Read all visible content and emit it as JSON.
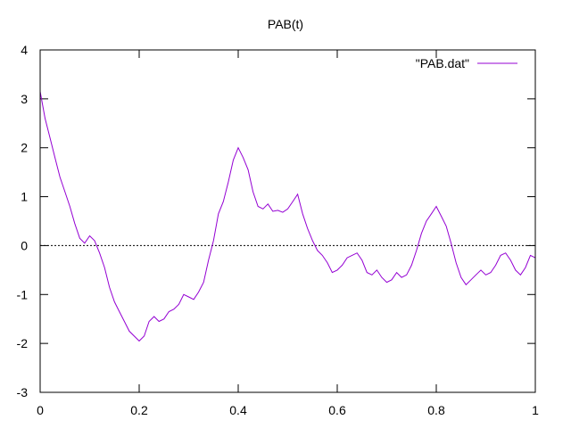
{
  "chart_data": {
    "type": "line",
    "title": "PAB(t)",
    "xlabel": "",
    "ylabel": "",
    "xlim": [
      0,
      1
    ],
    "ylim": [
      -3,
      4
    ],
    "x_ticks": [
      {
        "value": 0,
        "label": "0"
      },
      {
        "value": 0.2,
        "label": "0.2"
      },
      {
        "value": 0.4,
        "label": "0.4"
      },
      {
        "value": 0.6,
        "label": "0.6"
      },
      {
        "value": 0.8,
        "label": "0.8"
      },
      {
        "value": 1,
        "label": "1"
      }
    ],
    "y_ticks": [
      {
        "value": -3,
        "label": "-3"
      },
      {
        "value": -2,
        "label": "-2"
      },
      {
        "value": -1,
        "label": "-1"
      },
      {
        "value": 0,
        "label": "0"
      },
      {
        "value": 1,
        "label": "1"
      },
      {
        "value": 2,
        "label": "2"
      },
      {
        "value": 3,
        "label": "3"
      },
      {
        "value": 4,
        "label": "4"
      }
    ],
    "grid": false,
    "legend_position": "top-right",
    "reference_line": {
      "y": 0,
      "style": "dotted",
      "color": "#000000"
    },
    "series": [
      {
        "name": "\"PAB.dat\"",
        "color": "#9400d3",
        "x": [
          0.0,
          0.01,
          0.02,
          0.03,
          0.04,
          0.05,
          0.06,
          0.07,
          0.08,
          0.09,
          0.1,
          0.11,
          0.12,
          0.13,
          0.14,
          0.15,
          0.16,
          0.17,
          0.18,
          0.19,
          0.2,
          0.21,
          0.22,
          0.23,
          0.24,
          0.25,
          0.26,
          0.27,
          0.28,
          0.29,
          0.3,
          0.31,
          0.32,
          0.33,
          0.34,
          0.35,
          0.36,
          0.37,
          0.38,
          0.39,
          0.4,
          0.41,
          0.42,
          0.43,
          0.44,
          0.45,
          0.46,
          0.47,
          0.48,
          0.49,
          0.5,
          0.51,
          0.52,
          0.53,
          0.54,
          0.55,
          0.56,
          0.57,
          0.58,
          0.59,
          0.6,
          0.61,
          0.62,
          0.63,
          0.64,
          0.65,
          0.66,
          0.67,
          0.68,
          0.69,
          0.7,
          0.71,
          0.72,
          0.73,
          0.74,
          0.75,
          0.76,
          0.77,
          0.78,
          0.79,
          0.8,
          0.81,
          0.82,
          0.83,
          0.84,
          0.85,
          0.86,
          0.87,
          0.88,
          0.89,
          0.9,
          0.91,
          0.92,
          0.93,
          0.94,
          0.95,
          0.96,
          0.97,
          0.98,
          0.99,
          1.0
        ],
        "y": [
          3.15,
          2.6,
          2.2,
          1.8,
          1.4,
          1.1,
          0.8,
          0.45,
          0.15,
          0.05,
          0.2,
          0.1,
          -0.15,
          -0.45,
          -0.85,
          -1.15,
          -1.35,
          -1.55,
          -1.75,
          -1.85,
          -1.95,
          -1.85,
          -1.55,
          -1.45,
          -1.55,
          -1.5,
          -1.35,
          -1.3,
          -1.2,
          -1.0,
          -1.05,
          -1.1,
          -0.95,
          -0.75,
          -0.3,
          0.1,
          0.65,
          0.9,
          1.3,
          1.75,
          2.0,
          1.8,
          1.55,
          1.1,
          0.8,
          0.75,
          0.85,
          0.7,
          0.72,
          0.68,
          0.75,
          0.9,
          1.05,
          0.65,
          0.35,
          0.1,
          -0.1,
          -0.2,
          -0.35,
          -0.55,
          -0.5,
          -0.4,
          -0.25,
          -0.2,
          -0.15,
          -0.3,
          -0.55,
          -0.6,
          -0.5,
          -0.65,
          -0.75,
          -0.7,
          -0.55,
          -0.65,
          -0.6,
          -0.4,
          -0.1,
          0.25,
          0.5,
          0.65,
          0.8,
          0.6,
          0.4,
          0.05,
          -0.35,
          -0.65,
          -0.8,
          -0.7,
          -0.6,
          -0.5,
          -0.6,
          -0.55,
          -0.4,
          -0.2,
          -0.15,
          -0.3,
          -0.5,
          -0.6,
          -0.45,
          -0.2,
          -0.25
        ]
      }
    ]
  }
}
